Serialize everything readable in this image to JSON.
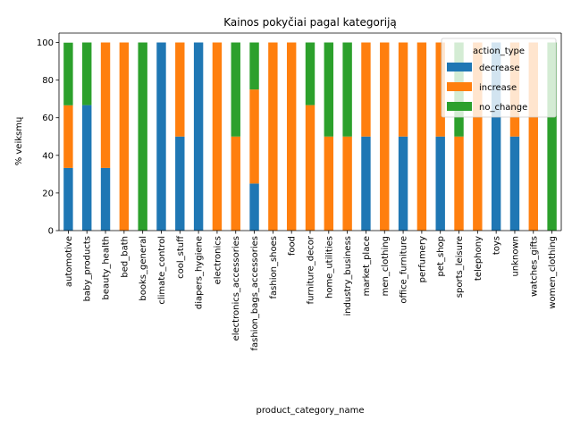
{
  "chart_data": {
    "type": "bar",
    "stacked": true,
    "title": "Kainos pokyčiai pagal kategoriją",
    "xlabel": "product_category_name",
    "ylabel": "% veiksmų",
    "ylim": [
      0,
      105
    ],
    "yticks": [
      0,
      20,
      40,
      60,
      80,
      100
    ],
    "grid": false,
    "legend": {
      "title": "action_type",
      "placement": "top-right"
    },
    "categories": [
      "automotive",
      "baby_products",
      "beauty_health",
      "bed_bath",
      "books_general",
      "climate_control",
      "cool_stuff",
      "diapers_hygiene",
      "electronics",
      "electronics_accessories",
      "fashion_bags_accessories",
      "fashion_shoes",
      "food",
      "furniture_decor",
      "home_utilities",
      "industry_business",
      "market_place",
      "men_clothing",
      "office_furniture",
      "perfumery",
      "pet_shop",
      "sports_leisure",
      "telephony",
      "toys",
      "unknown",
      "watches_gifts",
      "women_clothing"
    ],
    "series": [
      {
        "name": "decrease",
        "color": "#1f77b4",
        "values": [
          33.3,
          66.7,
          33.3,
          0,
          0,
          100,
          50,
          100,
          0,
          0,
          25,
          0,
          0,
          0,
          0,
          0,
          50,
          0,
          50,
          0,
          50,
          0,
          0,
          100,
          50,
          0,
          0
        ]
      },
      {
        "name": "increase",
        "color": "#ff7f0e",
        "values": [
          33.3,
          0,
          66.7,
          100,
          0,
          0,
          50,
          0,
          100,
          50,
          50,
          100,
          100,
          66.7,
          50,
          50,
          50,
          100,
          50,
          100,
          50,
          50,
          100,
          0,
          50,
          100,
          0
        ]
      },
      {
        "name": "no_change",
        "color": "#2ca02c",
        "values": [
          33.3,
          33.3,
          0,
          0,
          100,
          0,
          0,
          0,
          0,
          50,
          25,
          0,
          0,
          33.3,
          50,
          50,
          0,
          0,
          0,
          0,
          0,
          50,
          0,
          0,
          0,
          0,
          100
        ]
      }
    ]
  }
}
